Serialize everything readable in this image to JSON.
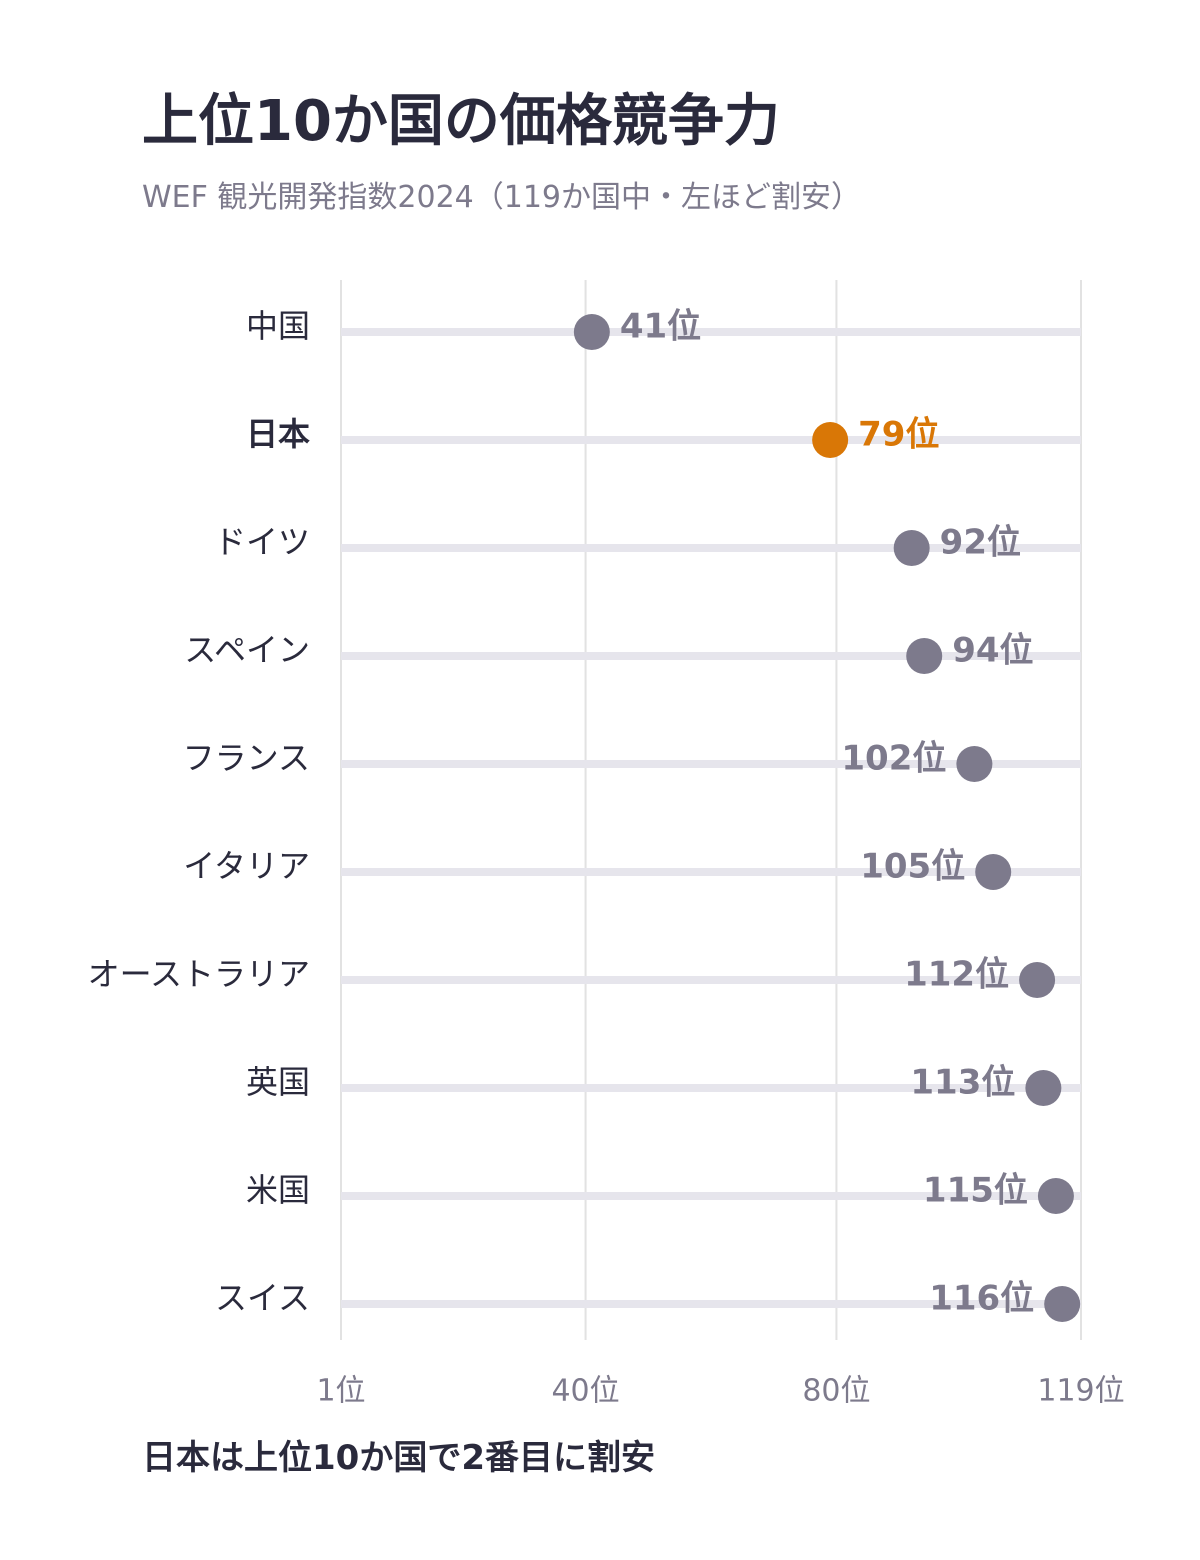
{
  "title": "上位10か国の価格競争力",
  "subtitle": "WEF 観光開発指数2024（119か国中・左ほど割安）",
  "footnote": "日本は上位10か国で2番目に割安",
  "colors": {
    "default_dot": "#7d7a8c",
    "highlight_dot": "#d97706",
    "track": "#e6e5ec",
    "grid": "#e2e2e2",
    "text": "#2a2a3c",
    "muted": "#7d7a8c"
  },
  "chart_data": {
    "type": "lollipop",
    "title": "上位10か国の価格競争力",
    "subtitle": "WEF 観光開発指数2024（119か国中・左ほど割安）",
    "xlim": [
      1,
      119
    ],
    "x_ticks": [
      1,
      40,
      80,
      119
    ],
    "x_tick_labels": [
      "1位",
      "40位",
      "80位",
      "119位"
    ],
    "value_suffix": "位",
    "grid": true,
    "categories": [
      "中国",
      "日本",
      "ドイツ",
      "スペイン",
      "フランス",
      "イタリア",
      "オーストラリア",
      "英国",
      "米国",
      "スイス"
    ],
    "values": [
      41,
      79,
      92,
      94,
      102,
      105,
      112,
      113,
      115,
      116
    ],
    "value_labels": [
      "41位",
      "79位",
      "92位",
      "94位",
      "102位",
      "105位",
      "112位",
      "113位",
      "115位",
      "116位"
    ],
    "highlight": "日本"
  }
}
